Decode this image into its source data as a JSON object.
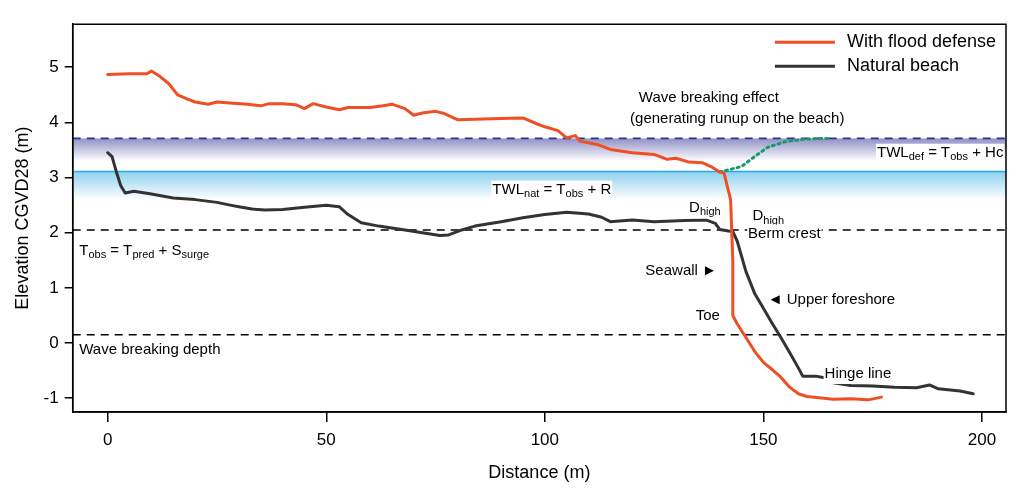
{
  "chart_data": {
    "type": "line",
    "xlabel": "Distance (m)",
    "ylabel": "Elevation CGVD28 (m)",
    "xlim": [
      -8,
      205.5
    ],
    "ylim": [
      -1.25,
      5.78
    ],
    "xticks": [
      0,
      50,
      100,
      150,
      200
    ],
    "yticks": [
      -1,
      0,
      1,
      2,
      3,
      4,
      5
    ],
    "grid": false,
    "legend": "top right",
    "marker": "none",
    "series": [
      {
        "name": "With flood defense",
        "color": "#f04e23",
        "x": [
          0,
          5,
          9,
          10,
          12,
          14,
          16,
          18,
          20,
          23,
          25,
          28,
          32,
          35,
          37,
          40,
          43,
          45,
          47,
          50,
          53,
          55,
          60,
          63,
          65,
          68,
          70,
          72,
          75,
          77,
          80,
          90,
          95,
          98,
          100,
          103,
          105,
          107,
          108,
          112,
          115,
          120,
          125,
          128,
          130,
          133,
          136,
          138,
          140,
          141,
          142.5,
          143,
          143,
          144,
          146,
          148,
          150,
          152,
          154,
          156,
          158,
          160,
          166,
          170,
          174,
          177
        ],
        "values": [
          4.87,
          4.88,
          4.88,
          4.93,
          4.83,
          4.7,
          4.5,
          4.43,
          4.37,
          4.33,
          4.37,
          4.35,
          4.33,
          4.3,
          4.34,
          4.34,
          4.32,
          4.25,
          4.34,
          4.28,
          4.23,
          4.27,
          4.27,
          4.3,
          4.33,
          4.25,
          4.13,
          4.17,
          4.2,
          4.16,
          4.05,
          4.07,
          4.08,
          3.98,
          3.92,
          3.85,
          3.72,
          3.76,
          3.66,
          3.6,
          3.51,
          3.45,
          3.42,
          3.33,
          3.35,
          3.28,
          3.27,
          3.2,
          3.1,
          3.08,
          2.6,
          1.5,
          0.5,
          0.35,
          0.1,
          -0.15,
          -0.35,
          -0.48,
          -0.62,
          -0.8,
          -0.92,
          -0.97,
          -1.02,
          -1.01,
          -1.03,
          -0.98
        ]
      },
      {
        "name": "Natural beach",
        "color": "#333333",
        "x": [
          0,
          1,
          2,
          3,
          4,
          6,
          10,
          15,
          20,
          25,
          28,
          30,
          33,
          36,
          40,
          45,
          50,
          53,
          55,
          58,
          62,
          68,
          72,
          76,
          78,
          81,
          84,
          90,
          95,
          100,
          105,
          110,
          113,
          115,
          120,
          125,
          132,
          137,
          139,
          140,
          142,
          143,
          144,
          146,
          148,
          150,
          152,
          154,
          156,
          158,
          159,
          162,
          164,
          166,
          170,
          175,
          180,
          185,
          188,
          190,
          195,
          198
        ],
        "values": [
          3.45,
          3.38,
          3.1,
          2.85,
          2.72,
          2.75,
          2.7,
          2.63,
          2.6,
          2.55,
          2.5,
          2.47,
          2.43,
          2.41,
          2.42,
          2.46,
          2.5,
          2.47,
          2.33,
          2.18,
          2.12,
          2.05,
          2.0,
          1.95,
          1.96,
          2.05,
          2.12,
          2.2,
          2.27,
          2.33,
          2.37,
          2.34,
          2.28,
          2.2,
          2.23,
          2.2,
          2.22,
          2.23,
          2.17,
          2.06,
          2.03,
          2.02,
          1.85,
          1.3,
          0.9,
          0.63,
          0.36,
          0.1,
          -0.17,
          -0.45,
          -0.6,
          -0.6,
          -0.63,
          -0.72,
          -0.77,
          -0.78,
          -0.8,
          -0.81,
          -0.76,
          -0.83,
          -0.87,
          -0.92
        ]
      },
      {
        "color": "#1a9a6a",
        "line_style": "dotted",
        "x": [
          140,
          145,
          148,
          151,
          155,
          160,
          165
        ],
        "values": [
          3.1,
          3.2,
          3.38,
          3.55,
          3.65,
          3.7,
          3.71
        ]
      }
    ],
    "ref_lines": [
      {
        "axis": "y",
        "value": 3.71,
        "color": "#2e3192",
        "line_style": "dashed"
      },
      {
        "axis": "y",
        "value": 3.11,
        "color": "#29a9e0",
        "line_style": "solid"
      },
      {
        "axis": "y",
        "value": 2.05,
        "color": "#000000",
        "line_style": "dashed"
      },
      {
        "axis": "y",
        "value": 0.15,
        "color": "#000000",
        "line_style": "dashed"
      }
    ],
    "bands": [
      {
        "axis": "y",
        "from": 3.3,
        "to": 3.71,
        "color": "#2e3192"
      },
      {
        "axis": "y",
        "from": 2.6,
        "to": 3.11,
        "color": "#29a9e0"
      }
    ],
    "annotations": [
      "Wave breaking effect",
      "(generating runup on the beach)",
      "TWL$_{def}$ = T$_{obs}$ + Hc",
      "TWL$_{nat}$ = T$_{obs}$ + R",
      "D$_{high}$",
      "D$_{high}$",
      {
        "text": "Berm crest",
        "x": 146.5,
        "y": 1.98
      },
      "T$_{obs}$ = T$_{pred}$ + S$_{surge}$",
      "Seawall ►",
      "◄ Upper foreshore",
      "Toe",
      {
        "text": "Hinge line",
        "x": 164,
        "y": -0.55
      },
      "Wave breaking depth"
    ]
  }
}
